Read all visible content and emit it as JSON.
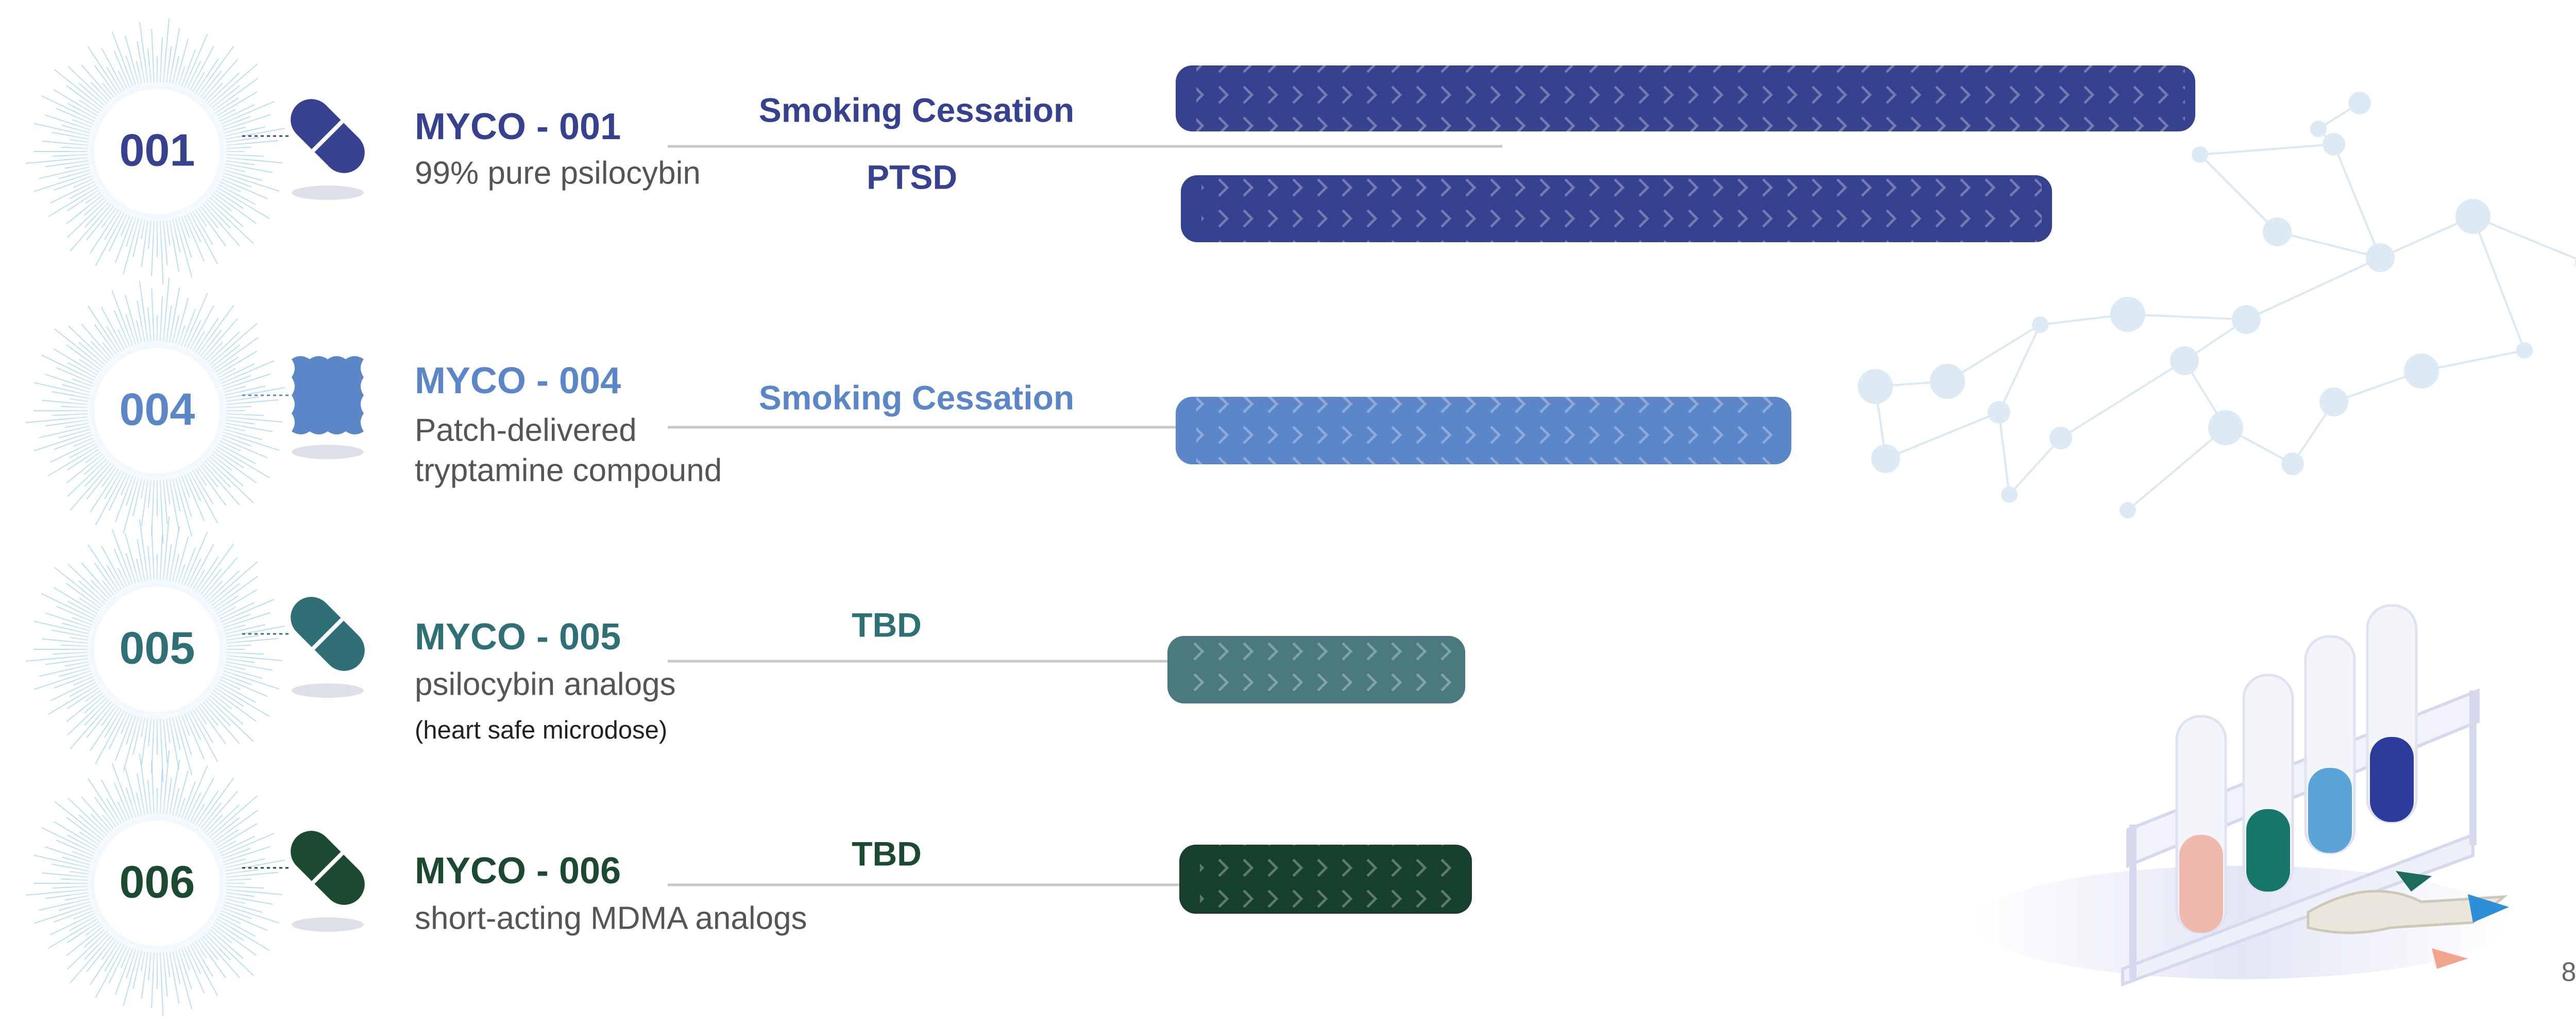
{
  "items": [
    {
      "number": "001",
      "name": "MYCO - 001",
      "description": [
        "99% pure psilocybin"
      ],
      "indications": [
        "Smoking Cessation",
        "PTSD"
      ]
    },
    {
      "number": "004",
      "name": "MYCO - 004",
      "description": [
        "Patch-delivered",
        "tryptamine compound"
      ],
      "indications": [
        "Smoking Cessation"
      ]
    },
    {
      "number": "005",
      "name": "MYCO - 005",
      "description": [
        "psilocybin analogs",
        "(heart safe microdose)"
      ],
      "indications": [
        "TBD"
      ]
    },
    {
      "number": "006",
      "name": "MYCO - 006",
      "description": [
        "short-acting MDMA analogs"
      ],
      "indications": [
        "TBD"
      ]
    }
  ],
  "page_number": "8"
}
